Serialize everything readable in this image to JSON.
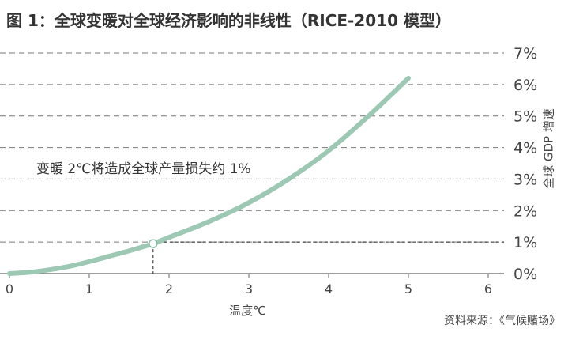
{
  "chart_data": {
    "type": "line",
    "title": "图 1：全球变暖对全球经济影响的非线性（RICE-2010 模型）",
    "xlabel": "温度℃",
    "ylabel": "全球 GDP 增速",
    "xlim": [
      0,
      6
    ],
    "ylim": [
      0,
      7
    ],
    "x_ticks": [
      "0",
      "1",
      "2",
      "3",
      "4",
      "5",
      "6"
    ],
    "y_ticks": [
      "0%",
      "1%",
      "2%",
      "3%",
      "4%",
      "5%",
      "6%",
      "7%"
    ],
    "grid": "horizontal-dashed",
    "series": [
      {
        "x": [
          0,
          0.25,
          0.5,
          0.75,
          1.0,
          1.25,
          1.5,
          1.8,
          2.0,
          2.5,
          3.0,
          3.5,
          4.0,
          4.5,
          5.0
        ],
        "values": [
          0,
          0.04,
          0.12,
          0.23,
          0.38,
          0.55,
          0.72,
          0.95,
          1.15,
          1.65,
          2.25,
          3.0,
          3.9,
          5.0,
          6.2
        ],
        "color": "#9dc8b4"
      }
    ],
    "highlight_point": {
      "x": 1.8,
      "y": 0.95
    },
    "annotation": "变暖 2℃将造成全球产量损失约 1%"
  },
  "source": "资料来源：《气候赌场》"
}
